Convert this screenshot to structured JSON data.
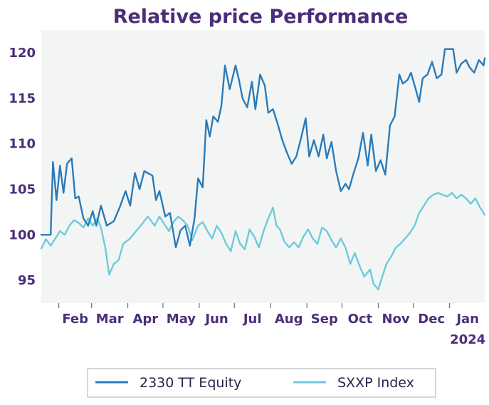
{
  "chart_data": {
    "type": "line",
    "title": "Relative price Performance",
    "xlabel": "",
    "ylabel": "",
    "x_ticks": [
      "Feb",
      "Mar",
      "Apr",
      "May",
      "Jun",
      "Jul",
      "Aug",
      "Sep",
      "Oct",
      "Nov",
      "Dec",
      "Jan"
    ],
    "x_year_label": "2024",
    "x_range": [
      "2023-01-17",
      "2024-01-31"
    ],
    "y_ticks": [
      95,
      100,
      105,
      110,
      115,
      120
    ],
    "ylim": [
      92.5,
      122.5
    ],
    "grid": false,
    "legend_position": "bottom",
    "colors": {
      "plot_bg": "#f3f5f5",
      "title": "#4b2e7a",
      "tick_text": "#4b2e7a"
    },
    "series": [
      {
        "name": "2330 TT Equity",
        "color": "#2b7bb9",
        "points": [
          [
            "2023-01-17",
            100.0
          ],
          [
            "2023-01-25",
            100.0
          ],
          [
            "2023-01-27",
            108.0
          ],
          [
            "2023-01-30",
            103.8
          ],
          [
            "2023-02-02",
            107.6
          ],
          [
            "2023-02-05",
            104.6
          ],
          [
            "2023-02-08",
            107.8
          ],
          [
            "2023-02-12",
            108.4
          ],
          [
            "2023-02-15",
            104.0
          ],
          [
            "2023-02-18",
            104.2
          ],
          [
            "2023-02-22",
            101.8
          ],
          [
            "2023-02-26",
            101.0
          ],
          [
            "2023-03-02",
            102.6
          ],
          [
            "2023-03-05",
            101.0
          ],
          [
            "2023-03-09",
            103.2
          ],
          [
            "2023-03-14",
            101.0
          ],
          [
            "2023-03-20",
            101.5
          ],
          [
            "2023-03-25",
            103.0
          ],
          [
            "2023-03-30",
            104.8
          ],
          [
            "2023-04-03",
            103.2
          ],
          [
            "2023-04-07",
            106.8
          ],
          [
            "2023-04-11",
            105.0
          ],
          [
            "2023-04-15",
            107.0
          ],
          [
            "2023-04-22",
            106.5
          ],
          [
            "2023-04-25",
            103.8
          ],
          [
            "2023-04-28",
            104.8
          ],
          [
            "2023-05-03",
            102.0
          ],
          [
            "2023-05-07",
            102.4
          ],
          [
            "2023-05-12",
            98.6
          ],
          [
            "2023-05-16",
            100.5
          ],
          [
            "2023-05-20",
            101.0
          ],
          [
            "2023-05-24",
            98.8
          ],
          [
            "2023-05-28",
            101.8
          ],
          [
            "2023-05-31",
            106.2
          ],
          [
            "2023-06-04",
            105.2
          ],
          [
            "2023-06-07",
            112.6
          ],
          [
            "2023-06-10",
            110.8
          ],
          [
            "2023-06-13",
            113.0
          ],
          [
            "2023-06-17",
            112.4
          ],
          [
            "2023-06-20",
            114.2
          ],
          [
            "2023-06-23",
            118.6
          ],
          [
            "2023-06-27",
            116.0
          ],
          [
            "2023-07-02",
            118.6
          ],
          [
            "2023-07-05",
            117.0
          ],
          [
            "2023-07-08",
            115.0
          ],
          [
            "2023-07-12",
            114.0
          ],
          [
            "2023-07-16",
            116.8
          ],
          [
            "2023-07-19",
            113.8
          ],
          [
            "2023-07-23",
            117.6
          ],
          [
            "2023-07-27",
            116.4
          ],
          [
            "2023-07-30",
            113.4
          ],
          [
            "2023-08-03",
            113.8
          ],
          [
            "2023-08-07",
            112.2
          ],
          [
            "2023-08-11",
            110.4
          ],
          [
            "2023-08-15",
            109.0
          ],
          [
            "2023-08-19",
            107.8
          ],
          [
            "2023-08-23",
            108.6
          ],
          [
            "2023-08-27",
            110.6
          ],
          [
            "2023-08-31",
            112.8
          ],
          [
            "2023-09-03",
            108.6
          ],
          [
            "2023-09-07",
            110.4
          ],
          [
            "2023-09-11",
            108.6
          ],
          [
            "2023-09-15",
            111.0
          ],
          [
            "2023-09-18",
            108.4
          ],
          [
            "2023-09-22",
            110.2
          ],
          [
            "2023-09-26",
            107.0
          ],
          [
            "2023-09-30",
            104.8
          ],
          [
            "2023-10-04",
            105.6
          ],
          [
            "2023-10-07",
            105.0
          ],
          [
            "2023-10-11",
            106.8
          ],
          [
            "2023-10-15",
            108.4
          ],
          [
            "2023-10-19",
            111.2
          ],
          [
            "2023-10-23",
            107.6
          ],
          [
            "2023-10-26",
            111.0
          ],
          [
            "2023-10-30",
            107.0
          ],
          [
            "2023-11-03",
            108.2
          ],
          [
            "2023-11-07",
            106.6
          ],
          [
            "2023-11-11",
            112.0
          ],
          [
            "2023-11-15",
            113.0
          ],
          [
            "2023-11-19",
            117.6
          ],
          [
            "2023-11-22",
            116.6
          ],
          [
            "2023-11-26",
            117.0
          ],
          [
            "2023-11-29",
            117.8
          ],
          [
            "2023-12-03",
            116.0
          ],
          [
            "2023-12-06",
            114.6
          ],
          [
            "2023-12-09",
            117.2
          ],
          [
            "2023-12-13",
            117.6
          ],
          [
            "2023-12-17",
            119.0
          ],
          [
            "2023-12-21",
            117.2
          ],
          [
            "2023-12-25",
            117.6
          ],
          [
            "2023-12-28",
            120.4
          ],
          [
            "2024-01-04",
            120.4
          ],
          [
            "2024-01-07",
            117.8
          ],
          [
            "2024-01-11",
            118.8
          ],
          [
            "2024-01-15",
            119.2
          ],
          [
            "2024-01-18",
            118.4
          ],
          [
            "2024-01-22",
            117.8
          ],
          [
            "2024-01-26",
            119.2
          ],
          [
            "2024-01-30",
            118.6
          ],
          [
            "2024-01-31",
            119.4
          ]
        ]
      },
      {
        "name": "SXXP Index",
        "color": "#6ccbdb",
        "points": [
          [
            "2023-01-17",
            98.5
          ],
          [
            "2023-01-21",
            99.5
          ],
          [
            "2023-01-25",
            98.8
          ],
          [
            "2023-01-29",
            99.6
          ],
          [
            "2023-02-02",
            100.4
          ],
          [
            "2023-02-06",
            100.0
          ],
          [
            "2023-02-10",
            101.0
          ],
          [
            "2023-02-14",
            101.6
          ],
          [
            "2023-02-18",
            101.3
          ],
          [
            "2023-02-22",
            100.8
          ],
          [
            "2023-02-26",
            101.8
          ],
          [
            "2023-03-02",
            101.0
          ],
          [
            "2023-03-06",
            101.8
          ],
          [
            "2023-03-09",
            100.8
          ],
          [
            "2023-03-13",
            98.4
          ],
          [
            "2023-03-16",
            95.6
          ],
          [
            "2023-03-20",
            96.8
          ],
          [
            "2023-03-24",
            97.2
          ],
          [
            "2023-03-28",
            99.0
          ],
          [
            "2023-04-03",
            99.6
          ],
          [
            "2023-04-08",
            100.4
          ],
          [
            "2023-04-12",
            101.0
          ],
          [
            "2023-04-18",
            102.0
          ],
          [
            "2023-04-24",
            101.0
          ],
          [
            "2023-04-28",
            102.0
          ],
          [
            "2023-05-02",
            101.2
          ],
          [
            "2023-05-06",
            100.4
          ],
          [
            "2023-05-10",
            101.4
          ],
          [
            "2023-05-14",
            102.0
          ],
          [
            "2023-05-18",
            101.6
          ],
          [
            "2023-05-22",
            101.0
          ],
          [
            "2023-05-26",
            99.4
          ],
          [
            "2023-05-31",
            101.0
          ],
          [
            "2023-06-04",
            101.4
          ],
          [
            "2023-06-08",
            100.4
          ],
          [
            "2023-06-12",
            99.6
          ],
          [
            "2023-06-16",
            101.0
          ],
          [
            "2023-06-20",
            100.2
          ],
          [
            "2023-06-24",
            99.0
          ],
          [
            "2023-06-28",
            98.2
          ],
          [
            "2023-07-02",
            100.4
          ],
          [
            "2023-07-06",
            99.0
          ],
          [
            "2023-07-10",
            98.4
          ],
          [
            "2023-07-14",
            100.6
          ],
          [
            "2023-07-18",
            99.8
          ],
          [
            "2023-07-22",
            98.6
          ],
          [
            "2023-07-26",
            100.4
          ],
          [
            "2023-07-30",
            101.8
          ],
          [
            "2023-08-03",
            103.0
          ],
          [
            "2023-08-06",
            101.0
          ],
          [
            "2023-08-09",
            100.6
          ],
          [
            "2023-08-13",
            99.2
          ],
          [
            "2023-08-17",
            98.6
          ],
          [
            "2023-08-21",
            99.2
          ],
          [
            "2023-08-25",
            98.6
          ],
          [
            "2023-08-29",
            99.8
          ],
          [
            "2023-09-02",
            100.6
          ],
          [
            "2023-09-06",
            99.6
          ],
          [
            "2023-09-10",
            99.0
          ],
          [
            "2023-09-14",
            100.8
          ],
          [
            "2023-09-18",
            100.4
          ],
          [
            "2023-09-22",
            99.4
          ],
          [
            "2023-09-26",
            98.6
          ],
          [
            "2023-09-30",
            99.6
          ],
          [
            "2023-10-04",
            98.6
          ],
          [
            "2023-10-08",
            96.8
          ],
          [
            "2023-10-12",
            98.0
          ],
          [
            "2023-10-16",
            96.6
          ],
          [
            "2023-10-20",
            95.4
          ],
          [
            "2023-10-25",
            96.2
          ],
          [
            "2023-10-28",
            94.6
          ],
          [
            "2023-11-01",
            94.0
          ],
          [
            "2023-11-04",
            95.2
          ],
          [
            "2023-11-08",
            96.8
          ],
          [
            "2023-11-12",
            97.6
          ],
          [
            "2023-11-16",
            98.6
          ],
          [
            "2023-11-20",
            99.0
          ],
          [
            "2023-11-24",
            99.6
          ],
          [
            "2023-11-28",
            100.2
          ],
          [
            "2023-12-02",
            101.0
          ],
          [
            "2023-12-06",
            102.4
          ],
          [
            "2023-12-10",
            103.2
          ],
          [
            "2023-12-14",
            104.0
          ],
          [
            "2023-12-18",
            104.4
          ],
          [
            "2023-12-22",
            104.6
          ],
          [
            "2023-12-26",
            104.4
          ],
          [
            "2023-12-30",
            104.2
          ],
          [
            "2024-01-03",
            104.6
          ],
          [
            "2024-01-07",
            104.0
          ],
          [
            "2024-01-11",
            104.4
          ],
          [
            "2024-01-15",
            104.0
          ],
          [
            "2024-01-19",
            103.4
          ],
          [
            "2024-01-23",
            104.0
          ],
          [
            "2024-01-27",
            103.0
          ],
          [
            "2024-01-30",
            102.4
          ],
          [
            "2024-01-31",
            102.2
          ]
        ]
      }
    ]
  }
}
